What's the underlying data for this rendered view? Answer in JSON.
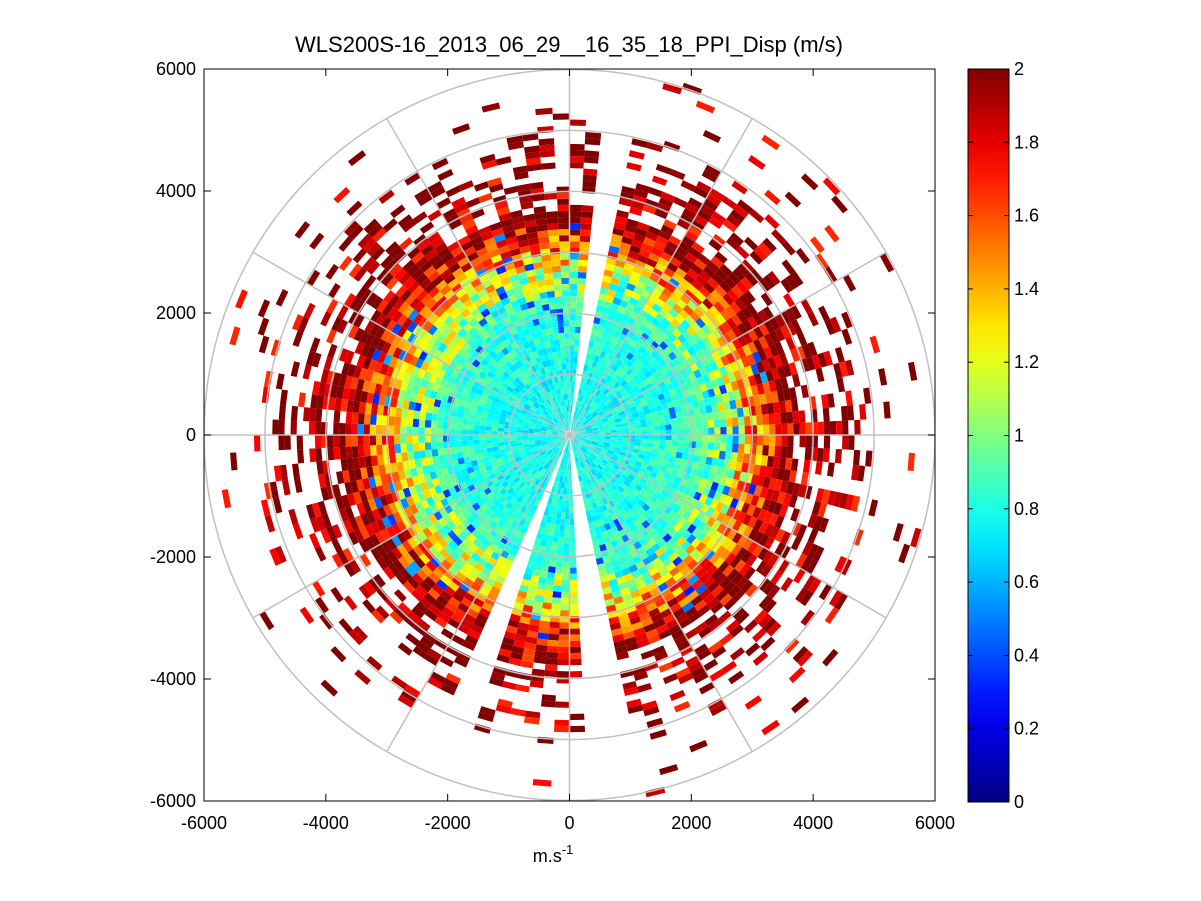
{
  "chart_data": {
    "type": "heatmap",
    "subtype": "polar-ppi",
    "title": "WLS200S-16_2013_06_29__16_35_18_PPI_Disp (m/s)",
    "xlabel": "m.s",
    "xlabel_superscript": "-1",
    "ylabel": "",
    "xlim": [
      -6000,
      6000
    ],
    "ylim": [
      -6000,
      6000
    ],
    "xticks": [
      -6000,
      -4000,
      -2000,
      0,
      2000,
      4000,
      6000
    ],
    "yticks": [
      6000,
      4000,
      2000,
      0,
      -2000,
      -4000,
      -6000
    ],
    "xtick_labels": [
      "-6000",
      "-4000",
      "-2000",
      "0",
      "2000",
      "4000",
      "6000"
    ],
    "ytick_labels": [
      "6000",
      "4000",
      "2000",
      "0",
      "-2000",
      "-4000",
      "-6000"
    ],
    "polar_grid": {
      "rings_m": [
        1000,
        2000,
        3000,
        4000,
        5000,
        6000
      ],
      "spokes_deg": [
        0,
        30,
        60,
        90,
        120,
        150,
        180,
        210,
        240,
        270,
        300,
        330
      ]
    },
    "colorbar": {
      "min": 0,
      "max": 2,
      "ticks": [
        0,
        0.2,
        0.4,
        0.6,
        0.8,
        1,
        1.2,
        1.4,
        1.6,
        1.8,
        2
      ],
      "tick_labels": [
        "0",
        "0.2",
        "0.4",
        "0.6",
        "0.8",
        "1",
        "1.2",
        "1.4",
        "1.6",
        "1.8",
        "2"
      ],
      "colormap": "jet"
    },
    "field": {
      "description_note": "Dispersion (m/s) vs range: ~0.8 near radar, ~1.0-1.4 around 2500-3000 m, saturating at 2 beyond ~3500 m; sparse returns beyond ~4500 m",
      "radial_profile": [
        {
          "range_m": 0,
          "value": 0.75
        },
        {
          "range_m": 1000,
          "value": 0.78
        },
        {
          "range_m": 2000,
          "value": 0.85
        },
        {
          "range_m": 2600,
          "value": 1.1
        },
        {
          "range_m": 3000,
          "value": 1.5
        },
        {
          "range_m": 3500,
          "value": 1.95
        },
        {
          "range_m": 4500,
          "value": 2.0
        },
        {
          "range_m": 6000,
          "value": 2.0
        }
      ],
      "gaps_azimuth_deg": [
        [
          5,
          12
        ],
        [
          168,
          176
        ],
        [
          198,
          203
        ]
      ]
    }
  }
}
